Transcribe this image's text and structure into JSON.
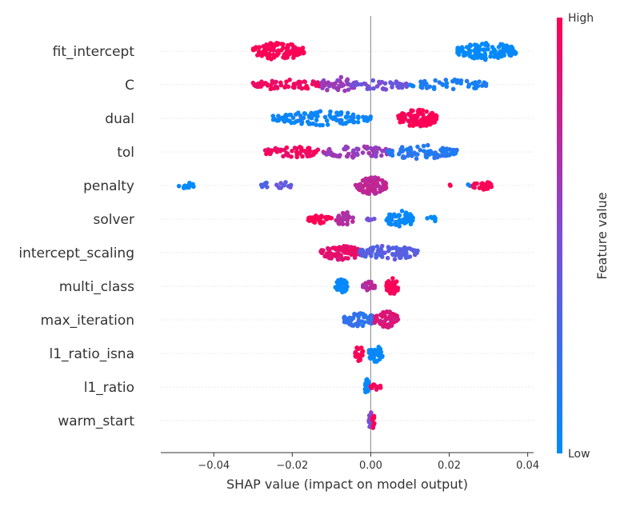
{
  "chart_data": {
    "type": "scatter",
    "subtype": "shap-beeswarm",
    "title": "",
    "xlabel": "SHAP value (impact on model output)",
    "ylabel": "",
    "xlim": [
      -0.0535,
      0.0415
    ],
    "xticks": [
      -0.04,
      -0.02,
      0.0,
      0.02,
      0.04
    ],
    "xtick_labels": [
      "−0.04",
      "−0.02",
      "0.00",
      "0.02",
      "0.04"
    ],
    "grid": "dotted horizontal row guides",
    "zero_line": 0.0,
    "colorbar": {
      "label": "Feature value",
      "high_label": "High",
      "low_label": "Low",
      "low_color": "#008bfb",
      "mid_color": "#7d4dd6",
      "high_color": "#ff0052"
    },
    "features": [
      {
        "name": "fit_intercept",
        "clusters": [
          {
            "x": [
              -0.03,
              -0.017
            ],
            "fv": 1.0,
            "n": 120,
            "w": 1.0
          },
          {
            "x": [
              0.022,
              0.037
            ],
            "fv": 0.0,
            "n": 120,
            "w": 1.0
          }
        ]
      },
      {
        "name": "C",
        "clusters": [
          {
            "x": [
              -0.03,
              -0.012
            ],
            "fv": 0.95,
            "n": 60,
            "w": 0.6
          },
          {
            "x": [
              -0.013,
              -0.004
            ],
            "fv": 0.6,
            "n": 40,
            "w": 0.9
          },
          {
            "x": [
              -0.005,
              0.01
            ],
            "fv": 0.45,
            "n": 50,
            "w": 0.6
          },
          {
            "x": [
              0.01,
              0.03
            ],
            "fv": 0.1,
            "n": 50,
            "w": 0.6
          }
        ]
      },
      {
        "name": "dual",
        "clusters": [
          {
            "x": [
              -0.025,
              0.0
            ],
            "fv": 0.05,
            "n": 110,
            "w": 0.8
          },
          {
            "x": [
              0.007,
              0.017
            ],
            "fv": 1.0,
            "n": 110,
            "w": 1.0
          }
        ]
      },
      {
        "name": "tol",
        "clusters": [
          {
            "x": [
              -0.027,
              -0.012
            ],
            "fv": 0.95,
            "n": 60,
            "w": 0.6
          },
          {
            "x": [
              -0.012,
              0.005
            ],
            "fv": 0.6,
            "n": 70,
            "w": 0.7
          },
          {
            "x": [
              0.003,
              0.022
            ],
            "fv": 0.15,
            "n": 80,
            "w": 0.8
          }
        ]
      },
      {
        "name": "penalty",
        "clusters": [
          {
            "x": [
              -0.049,
              -0.045
            ],
            "fv": 0.0,
            "n": 14,
            "w": 0.35
          },
          {
            "x": [
              -0.028,
              -0.026
            ],
            "fv": 0.3,
            "n": 8,
            "w": 0.4
          },
          {
            "x": [
              -0.024,
              -0.02
            ],
            "fv": 0.4,
            "n": 10,
            "w": 0.4
          },
          {
            "x": [
              -0.004,
              0.004
            ],
            "fv": 0.75,
            "n": 80,
            "w": 1.0
          },
          {
            "x": [
              0.0195,
              0.0205
            ],
            "fv": 1.0,
            "n": 2,
            "w": 0.2
          },
          {
            "x": [
              0.0245,
              0.0255
            ],
            "fv": 0.1,
            "n": 2,
            "w": 0.2
          },
          {
            "x": [
              0.026,
              0.031
            ],
            "fv": 1.0,
            "n": 30,
            "w": 0.5
          }
        ]
      },
      {
        "name": "solver",
        "clusters": [
          {
            "x": [
              -0.016,
              -0.01
            ],
            "fv": 1.0,
            "n": 30,
            "w": 0.5
          },
          {
            "x": [
              -0.009,
              -0.004
            ],
            "fv": 0.7,
            "n": 30,
            "w": 0.8
          },
          {
            "x": [
              -0.001,
              0.001
            ],
            "fv": 0.45,
            "n": 5,
            "w": 0.3
          },
          {
            "x": [
              0.004,
              0.011
            ],
            "fv": 0.0,
            "n": 60,
            "w": 1.0
          },
          {
            "x": [
              0.014,
              0.017
            ],
            "fv": 0.0,
            "n": 6,
            "w": 0.3
          }
        ]
      },
      {
        "name": "intercept_scaling",
        "clusters": [
          {
            "x": [
              -0.013,
              -0.002
            ],
            "fv": 0.9,
            "n": 90,
            "w": 0.8
          },
          {
            "x": [
              -0.003,
              0.012
            ],
            "fv": 0.35,
            "n": 90,
            "w": 0.8
          }
        ]
      },
      {
        "name": "multi_class",
        "clusters": [
          {
            "x": [
              -0.009,
              -0.006
            ],
            "fv": 0.0,
            "n": 40,
            "w": 0.9
          },
          {
            "x": [
              -0.002,
              0.001
            ],
            "fv": 0.7,
            "n": 30,
            "w": 0.6
          },
          {
            "x": [
              0.004,
              0.007
            ],
            "fv": 1.0,
            "n": 40,
            "w": 1.0
          }
        ]
      },
      {
        "name": "max_iteration",
        "clusters": [
          {
            "x": [
              -0.007,
              0.002
            ],
            "fv": 0.2,
            "n": 60,
            "w": 0.8
          },
          {
            "x": [
              0.001,
              0.007
            ],
            "fv": 0.85,
            "n": 60,
            "w": 1.0
          }
        ]
      },
      {
        "name": "l1_ratio_isna",
        "clusters": [
          {
            "x": [
              -0.004,
              -0.002
            ],
            "fv": 1.0,
            "n": 30,
            "w": 1.0
          },
          {
            "x": [
              -0.0005,
              0.003
            ],
            "fv": 0.0,
            "n": 40,
            "w": 1.0
          }
        ]
      },
      {
        "name": "l1_ratio",
        "clusters": [
          {
            "x": [
              -0.0015,
              -0.0005
            ],
            "fv": 0.0,
            "n": 20,
            "w": 1.0
          },
          {
            "x": [
              0.0,
              0.003
            ],
            "fv": 0.95,
            "n": 14,
            "w": 0.4
          }
        ]
      },
      {
        "name": "warm_start",
        "clusters": [
          {
            "x": [
              -0.0005,
              0.0005
            ],
            "fv": 0.5,
            "n": 20,
            "w": 1.0
          },
          {
            "x": [
              0.0004,
              0.0009
            ],
            "fv": 1.0,
            "n": 8,
            "w": 1.0
          }
        ]
      }
    ]
  }
}
